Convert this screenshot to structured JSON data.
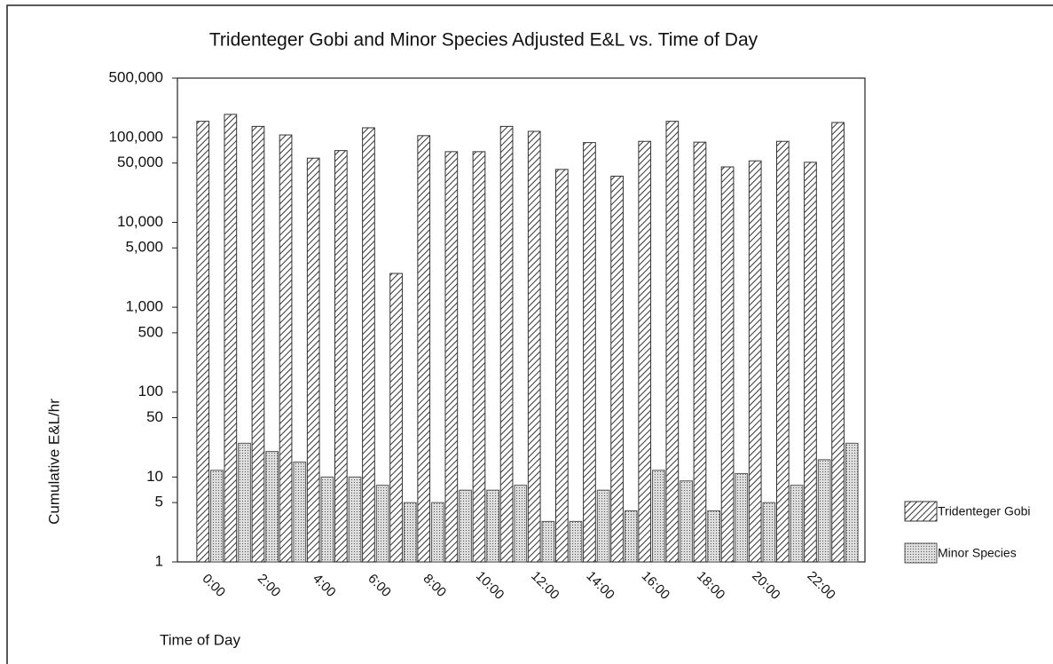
{
  "chart_data": {
    "type": "bar",
    "title": "Tridenteger Gobi and Minor Species Adjusted E&L vs. Time of Day",
    "x_label": "Time of Day",
    "y_label": "Cumulative E&L/hr",
    "categories": [
      "0:00",
      null,
      "2:00",
      null,
      "4:00",
      null,
      "6:00",
      null,
      "8:00",
      null,
      "10:00",
      null,
      "12:00",
      null,
      "14:00",
      null,
      "16:00",
      null,
      "18:00",
      null,
      "20:00",
      null,
      "22:00",
      null
    ],
    "series": [
      {
        "name": "Tridenteger Gobi",
        "color": "#333333",
        "pattern": "hatch",
        "values": [
          155000,
          187000,
          135000,
          107000,
          57000,
          70000,
          130000,
          2500,
          105000,
          68000,
          68000,
          135000,
          118000,
          42000,
          87000,
          35000,
          90000,
          155000,
          88000,
          45000,
          53000,
          90000,
          51000,
          150000
        ]
      },
      {
        "name": "Minor Species",
        "color": "#555555",
        "pattern": "dots",
        "values": [
          12,
          25,
          20,
          15,
          10,
          10,
          8,
          5,
          5,
          7,
          7,
          8,
          3,
          3,
          7,
          4,
          12,
          9,
          4,
          11,
          5,
          8,
          16,
          25
        ]
      }
    ],
    "log_scale": true,
    "ylim": [
      1,
      500000
    ],
    "yticks": [
      1,
      5,
      10,
      50,
      100,
      500,
      {
        "value": 1000,
        "label": "1,000"
      },
      {
        "value": 5000,
        "label": "5,000"
      },
      {
        "value": 10000,
        "label": "10,000"
      },
      {
        "value": 50000,
        "label": "50,000"
      },
      {
        "value": 100000,
        "label": "100,000"
      },
      {
        "value": 500000,
        "label": "500,000"
      }
    ],
    "legend": "right"
  }
}
